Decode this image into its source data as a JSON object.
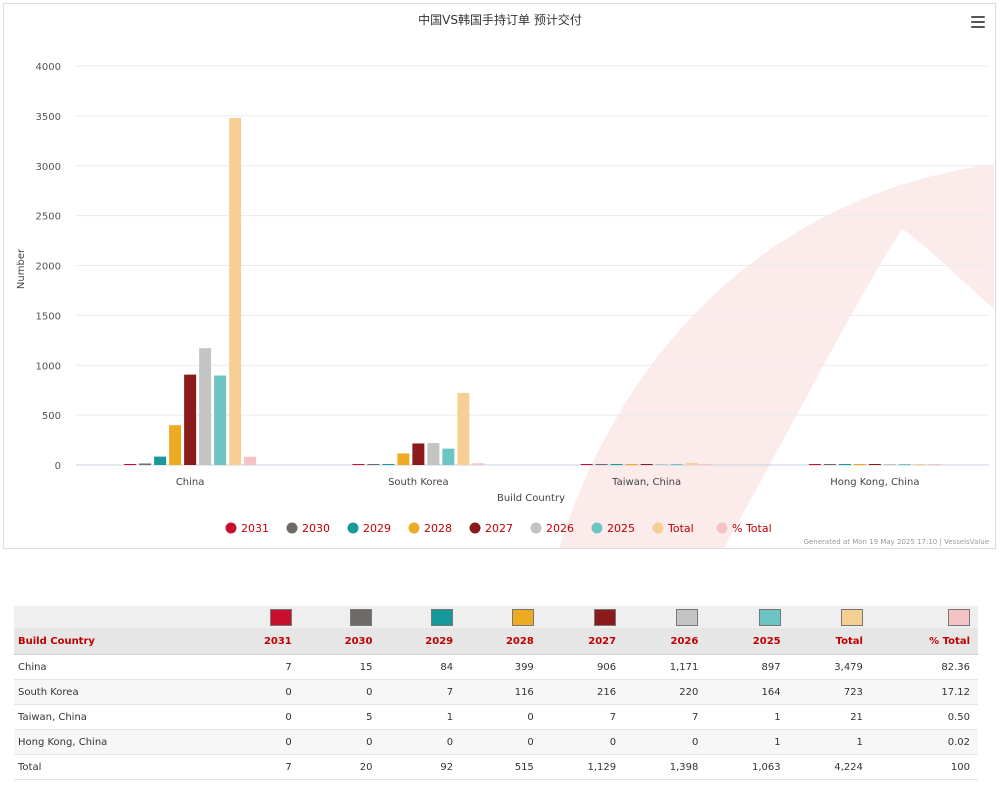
{
  "chart_data": {
    "type": "bar",
    "title": "中国VS韩国手持订单 预计交付",
    "xlabel": "Build Country",
    "ylabel": "Number",
    "ylim": [
      0,
      4000
    ],
    "yticks": [
      0,
      500,
      1000,
      1500,
      2000,
      2500,
      3000,
      3500,
      4000
    ],
    "grid": true,
    "legend_position": "bottom",
    "categories": [
      "China",
      "South Korea",
      "Taiwan, China",
      "Hong Kong, China"
    ],
    "series": [
      {
        "name": "2031",
        "color": "#c8102e",
        "values": [
          7,
          0,
          0,
          0
        ]
      },
      {
        "name": "2030",
        "color": "#6d6a67",
        "values": [
          15,
          0,
          5,
          0
        ]
      },
      {
        "name": "2029",
        "color": "#17999b",
        "values": [
          84,
          7,
          1,
          0
        ]
      },
      {
        "name": "2028",
        "color": "#eeaa22",
        "values": [
          399,
          116,
          0,
          0
        ]
      },
      {
        "name": "2027",
        "color": "#8b1a1a",
        "values": [
          906,
          216,
          7,
          0
        ]
      },
      {
        "name": "2026",
        "color": "#c4c4c4",
        "values": [
          1171,
          220,
          7,
          0
        ]
      },
      {
        "name": "2025",
        "color": "#6cc5c3",
        "values": [
          897,
          164,
          1,
          1
        ]
      },
      {
        "name": "Total",
        "color": "#f6cf95",
        "values": [
          3479,
          723,
          21,
          1
        ]
      },
      {
        "name": "% Total",
        "color": "#f5c3c6",
        "values": [
          82.36,
          17.12,
          0.5,
          0.02
        ]
      }
    ]
  },
  "credit": "Generated at Mon 19 May 2025 17:10 | VesselsValue",
  "table": {
    "header_first": "Build Country",
    "columns": [
      "2031",
      "2030",
      "2029",
      "2028",
      "2027",
      "2026",
      "2025",
      "Total",
      "% Total"
    ],
    "rows": [
      {
        "label": "China",
        "cells": [
          "7",
          "15",
          "84",
          "399",
          "906",
          "1,171",
          "897",
          "3,479",
          "82.36"
        ]
      },
      {
        "label": "South Korea",
        "cells": [
          "0",
          "0",
          "7",
          "116",
          "216",
          "220",
          "164",
          "723",
          "17.12"
        ]
      },
      {
        "label": "Taiwan, China",
        "cells": [
          "0",
          "5",
          "1",
          "0",
          "7",
          "7",
          "1",
          "21",
          "0.50"
        ]
      },
      {
        "label": "Hong Kong, China",
        "cells": [
          "0",
          "0",
          "0",
          "0",
          "0",
          "0",
          "1",
          "1",
          "0.02"
        ]
      },
      {
        "label": "Total",
        "cells": [
          "7",
          "20",
          "92",
          "515",
          "1,129",
          "1,398",
          "1,063",
          "4,224",
          "100"
        ]
      }
    ]
  }
}
